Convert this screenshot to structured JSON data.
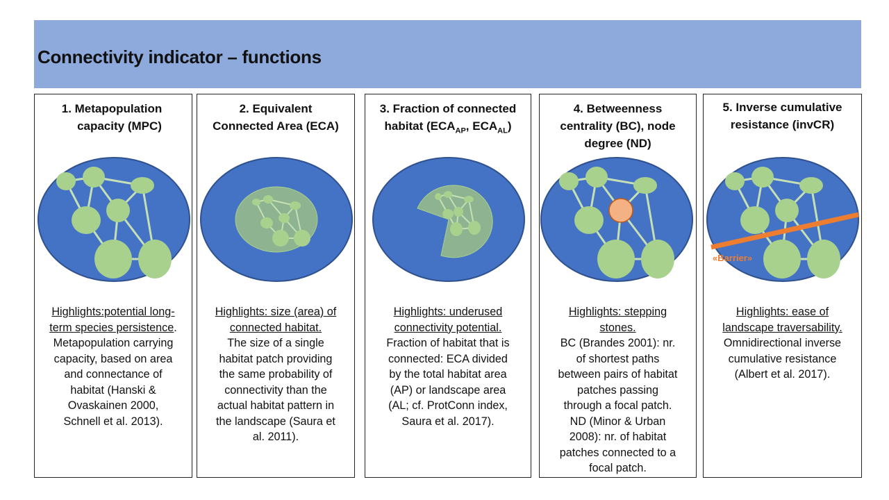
{
  "title": "Connectivity indicator – functions",
  "colors": {
    "header": "#8eaadc",
    "landscape": "#4472c4",
    "landscape_border": "#2f528f",
    "patch": "#a9d18e",
    "link": "#c5e0b4",
    "focal_patch": "#f4b183",
    "barrier": "#ed7d31"
  },
  "panels": [
    {
      "title_lines": [
        "1.    Metapopulation",
        "capacity (MPC)"
      ],
      "highlight_lines": [
        "Highlights:potential long-",
        "term species persistence"
      ],
      "highlight_tail": ".",
      "body_lines": [
        "Metapopulation carrying",
        "capacity, based on area",
        "and connectance of",
        "habitat (Hanski &",
        "Ovaskainen 2000,",
        "Schnell et al. 2013)."
      ]
    },
    {
      "title_lines": [
        "2. Equivalent",
        "Connected Area (ECA)"
      ],
      "highlight_lines": [
        "Highlights: size (area) of",
        "connected habitat."
      ],
      "body_lines": [
        "The size of a single",
        "habitat patch providing",
        "the same probability of",
        "connectivity than the",
        "actual habitat pattern in",
        "the landscape (Saura et",
        "al. 2011)."
      ]
    },
    {
      "title_lines": [
        "3. Fraction of connected"
      ],
      "title_line2": {
        "pre": "habitat (ECA",
        "sub1": "AP",
        "mid": ", ECA",
        "sub2": "AL",
        "post": ")"
      },
      "highlight_lines": [
        "Highlights: underused",
        "connectivity potential."
      ],
      "body_lines": [
        "Fraction of habitat that is",
        "connected: ECA divided",
        "by the total habitat area",
        "(AP) or landscape area",
        "(AL; cf. ProtConn index,",
        "Saura et al. 2017)."
      ]
    },
    {
      "title_lines": [
        "4. Betweenness",
        "centrality (BC), node",
        "degree (ND)"
      ],
      "highlight_lines": [
        "Highlights: stepping",
        "stones."
      ],
      "body_lines": [
        "BC (Brandes 2001): nr.",
        "of shortest paths",
        "between pairs of habitat",
        "patches passing",
        "through a focal patch.",
        "ND (Minor & Urban",
        "2008): nr. of habitat",
        "patches connected to a",
        "focal patch."
      ]
    },
    {
      "title_lines": [
        "5. Inverse cumulative",
        "resistance (invCR)"
      ],
      "highlight_lines": [
        "Highlights: ease of",
        "landscape traversability."
      ],
      "body_lines": [
        "Omnidirectional inverse",
        "cumulative resistance",
        "(Albert et al. 2017)."
      ],
      "barrier_label": "«Barrier»"
    }
  ]
}
